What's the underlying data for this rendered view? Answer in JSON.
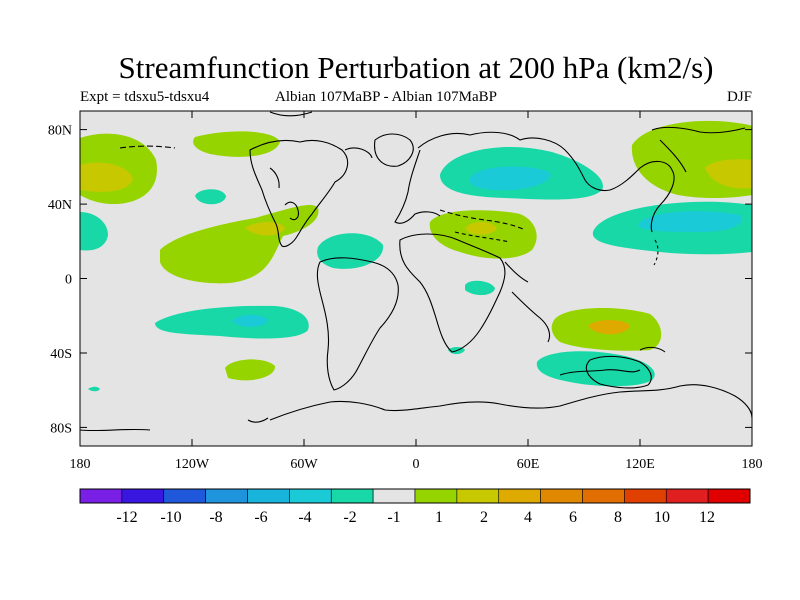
{
  "title": "Streamfunction Perturbation at 200 hPa (km2/s)",
  "subtitle_left": "Expt = tdsxu5-tdsxu4",
  "subtitle_center": "Albian   107MaBP - Albian   107MaBP",
  "subtitle_right": "DJF",
  "y_ticks": [
    "80N",
    "40N",
    "0",
    "40S",
    "80S"
  ],
  "x_ticks": [
    "180",
    "120W",
    "60W",
    "0",
    "60E",
    "120E",
    "180"
  ],
  "colorbar": {
    "colors": [
      "#7a1fe6",
      "#3a17e0",
      "#1f58da",
      "#1e94dc",
      "#18b4dc",
      "#1acad6",
      "#18d8a8",
      "#e4e4e4",
      "#96d400",
      "#c8c800",
      "#deaa00",
      "#e08800",
      "#e06e00",
      "#e04000",
      "#e02020",
      "#e00000"
    ],
    "labels": [
      "-12",
      "-10",
      "-8",
      "-6",
      "-4",
      "-2",
      "-1",
      "1",
      "2",
      "4",
      "6",
      "8",
      "10",
      "12"
    ]
  },
  "fill_colors": {
    "background": "#e4e4e4",
    "neg1": "#18d8a8",
    "neg2": "#1acad6",
    "pos1": "#96d400",
    "pos2": "#c8c800",
    "pos3": "#deaa00"
  }
}
